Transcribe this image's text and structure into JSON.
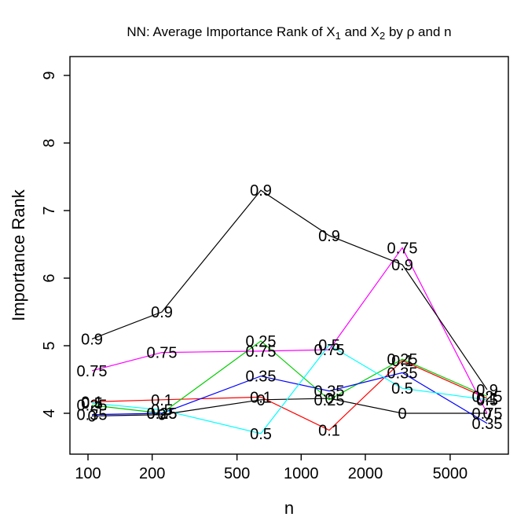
{
  "chart_data": {
    "type": "line",
    "title": "NN: Average Importance Rank of X₁ and X₂ by ρ and n",
    "title_parts": [
      {
        "t": "NN: Average Importance Rank of X",
        "sub": false
      },
      {
        "t": "1",
        "sub": true
      },
      {
        "t": " and X",
        "sub": false
      },
      {
        "t": "2",
        "sub": true
      },
      {
        "t": " by ρ and n",
        "sub": false
      }
    ],
    "xlabel": "n",
    "ylabel": "Importance Rank",
    "x_scale": "log",
    "x": [
      100,
      200,
      500,
      1000,
      2000,
      5000
    ],
    "x_tick_labels": [
      "100",
      "200",
      "500",
      "1000",
      "2000",
      "5000"
    ],
    "y_ticks": [
      4,
      5,
      6,
      7,
      8,
      9
    ],
    "y_tick_labels": [
      "4",
      "5",
      "6",
      "7",
      "8",
      "9"
    ],
    "ylim": [
      3.4,
      9.28
    ],
    "grid": false,
    "legend_position": "none",
    "point_label_source": "rho value printed at every data point",
    "axis_color": "#000000",
    "series": [
      {
        "name": "0",
        "rho": 0,
        "color": "#000000",
        "values": [
          3.96,
          3.98,
          4.2,
          4.22,
          4.0,
          4.0
        ]
      },
      {
        "name": "0.1",
        "rho": 0.1,
        "color": "#FF0000",
        "values": [
          4.17,
          4.2,
          4.24,
          3.75,
          4.78,
          4.22
        ]
      },
      {
        "name": "0.25",
        "rho": 0.25,
        "color": "#00CD00",
        "values": [
          4.12,
          4.0,
          5.07,
          4.2,
          4.8,
          4.25
        ]
      },
      {
        "name": "0.35",
        "rho": 0.35,
        "color": "#0000FF",
        "values": [
          3.98,
          4.0,
          4.55,
          4.33,
          4.6,
          3.85
        ]
      },
      {
        "name": "0.5",
        "rho": 0.5,
        "color": "#00FFFF",
        "values": [
          4.15,
          4.05,
          3.7,
          5.01,
          4.37,
          4.2
        ]
      },
      {
        "name": "0.75",
        "rho": 0.75,
        "color": "#FF00FF",
        "values": [
          4.63,
          4.9,
          4.92,
          4.94,
          6.45,
          4.0
        ]
      },
      {
        "name": "0.9",
        "rho": 0.9,
        "color": "#000000",
        "values": [
          5.1,
          5.5,
          7.3,
          6.63,
          6.2,
          4.35
        ]
      }
    ]
  }
}
